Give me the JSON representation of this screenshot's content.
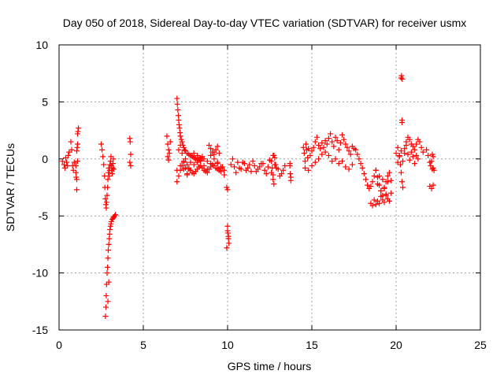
{
  "chart_data": {
    "type": "scatter",
    "title": "Day 050 of 2018, Sidereal Day-to-day VTEC variation (SDTVAR) for receiver usmx",
    "xlabel": "GPS time / hours",
    "ylabel": "SDTVAR / TECUs",
    "xlim": [
      0,
      25
    ],
    "ylim": [
      -15,
      10
    ],
    "xticks": [
      0,
      5,
      10,
      15,
      20,
      25
    ],
    "yticks": [
      -15,
      -10,
      -5,
      0,
      5,
      10
    ],
    "xtick_labels": [
      "0",
      "5",
      "10",
      "15",
      "20",
      "25"
    ],
    "ytick_labels": [
      "-15",
      "-10",
      "-5",
      "0",
      "5",
      "10"
    ],
    "grid": true,
    "marker": "+",
    "series": [
      {
        "name": "SDTVAR",
        "color": "#ff0000",
        "x": [
          0.2,
          0.3,
          0.35,
          0.4,
          0.45,
          0.5,
          0.55,
          0.6,
          0.7,
          0.75,
          0.8,
          0.85,
          0.9,
          1.0,
          1.02,
          1.05,
          1.08,
          1.1,
          1.12,
          1.15,
          1.05,
          1.1,
          1.0,
          1.05,
          1.1,
          2.5,
          2.55,
          2.6,
          2.65,
          2.7,
          2.72,
          2.75,
          2.78,
          2.8,
          2.82,
          2.85,
          2.88,
          2.9,
          2.92,
          2.95,
          2.98,
          3.0,
          3.02,
          3.05,
          3.08,
          3.1,
          3.12,
          3.15,
          3.18,
          3.2,
          3.22,
          3.25,
          2.75,
          2.78,
          2.8,
          2.82,
          2.85,
          2.88,
          2.9,
          2.92,
          2.95,
          2.98,
          3.0,
          3.02,
          3.05,
          3.08,
          3.1,
          3.15,
          3.2,
          3.25,
          3.3,
          3.35,
          2.9,
          2.95,
          4.2,
          4.22,
          4.25,
          4.2,
          4.25,
          6.4,
          6.45,
          6.5,
          6.45,
          6.5,
          6.55,
          6.6,
          7.0,
          7.02,
          7.05,
          7.08,
          7.1,
          7.12,
          7.15,
          7.18,
          7.2,
          7.25,
          7.3,
          7.35,
          7.4,
          7.45,
          7.5,
          7.6,
          7.7,
          7.8,
          7.9,
          8.0,
          8.1,
          8.2,
          8.3,
          8.4,
          8.5,
          7.0,
          7.1,
          7.2,
          7.3,
          7.4,
          7.5,
          7.6,
          7.7,
          7.8,
          7.9,
          8.0,
          8.1,
          8.2,
          8.3,
          8.4,
          8.5,
          8.6,
          8.7,
          8.8,
          8.9,
          9.0,
          9.1,
          9.2,
          9.3,
          9.4,
          9.5,
          9.6,
          9.7,
          7.1,
          7.2,
          7.3,
          7.4,
          7.5,
          7.6,
          7.7,
          7.8,
          7.9,
          8.0,
          8.2,
          8.4,
          8.6,
          8.8,
          9.0,
          9.2,
          9.4,
          9.6,
          9.8,
          7.0,
          7.2,
          7.4,
          7.6,
          7.8,
          8.0,
          8.2,
          8.4,
          8.6,
          8.8,
          9.0,
          9.2,
          9.4,
          9.6,
          9.8,
          8.9,
          9.0,
          9.1,
          9.2,
          9.3,
          9.4,
          9.5,
          9.95,
          10.0,
          10.02,
          10.05,
          10.08,
          10.0,
          10.05,
          9.95,
          10.0,
          10.2,
          10.4,
          10.6,
          10.8,
          11.0,
          11.2,
          11.4,
          11.6,
          11.8,
          12.0,
          12.2,
          12.4,
          12.6,
          12.8,
          13.0,
          13.2,
          13.4,
          10.3,
          10.5,
          10.7,
          10.9,
          11.1,
          11.3,
          11.5,
          11.7,
          11.9,
          12.1,
          12.3,
          12.5,
          12.7,
          12.9,
          13.1,
          13.3,
          12.6,
          12.65,
          12.7,
          12.75,
          12.8,
          12.85,
          12.7,
          12.75,
          13.7,
          13.72,
          13.75,
          13.7,
          13.75,
          14.5,
          14.55,
          14.6,
          14.65,
          14.7,
          14.75,
          14.8,
          14.9,
          15.0,
          15.1,
          15.2,
          15.3,
          15.4,
          15.5,
          15.6,
          15.7,
          15.8,
          15.9,
          16.0,
          16.1,
          16.2,
          16.3,
          16.4,
          16.5,
          16.6,
          16.7,
          16.8,
          16.9,
          17.0,
          17.1,
          17.2,
          17.3,
          17.4,
          17.5,
          14.6,
          14.8,
          15.0,
          15.2,
          15.4,
          15.6,
          15.8,
          16.0,
          16.2,
          16.4,
          16.6,
          16.8,
          17.0,
          17.2,
          17.4,
          17.6,
          17.7,
          17.8,
          17.9,
          18.0,
          18.1,
          18.2,
          18.3,
          18.4,
          18.5,
          18.6,
          18.7,
          18.8,
          18.9,
          19.0,
          19.1,
          19.2,
          19.3,
          19.4,
          19.5,
          19.6,
          19.7,
          18.5,
          18.6,
          18.7,
          18.8,
          18.9,
          19.0,
          19.1,
          19.2,
          19.3,
          19.4,
          19.5,
          19.6,
          19.7,
          18.8,
          18.9,
          19.0,
          19.1,
          19.2,
          19.3,
          19.4,
          19.5,
          20.0,
          20.1,
          20.2,
          20.25,
          20.3,
          20.35,
          20.4,
          20.5,
          20.6,
          20.7,
          20.8,
          20.9,
          21.0,
          21.1,
          21.2,
          21.3,
          21.4,
          21.5,
          21.6,
          20.1,
          20.2,
          20.3,
          20.4,
          20.5,
          20.6,
          20.7,
          20.8,
          20.9,
          21.0,
          21.1,
          21.2,
          21.3,
          20.3,
          20.32,
          20.35,
          20.35,
          20.37,
          21.8,
          21.9,
          22.0,
          22.05,
          22.1,
          22.15,
          22.2,
          22.25,
          22.0,
          22.1,
          22.2,
          22.15,
          22.2
        ],
        "y": [
          -0.2,
          -0.5,
          -0.8,
          0.1,
          -0.3,
          -0.6,
          0.3,
          0.6,
          1.5,
          0.8,
          -0.6,
          -1.0,
          -0.3,
          -1.2,
          -1.6,
          -2.7,
          1.0,
          1.3,
          2.4,
          2.7,
          -1.8,
          2.2,
          -0.6,
          0.7,
          -0.2,
          1.3,
          0.8,
          0.2,
          -0.5,
          -1.5,
          -2.5,
          -3.5,
          -4.0,
          -4.3,
          -3.8,
          -3.2,
          -2.5,
          -1.8,
          -1.2,
          -0.8,
          -1.5,
          -1.0,
          -0.5,
          -0.2,
          0.2,
          -0.6,
          -1.0,
          -1.3,
          -0.8,
          -0.4,
          0.0,
          -0.9,
          -13.8,
          -13.0,
          -12.0,
          -11.0,
          -10.0,
          -9.5,
          -8.7,
          -8.0,
          -7.5,
          -7.0,
          -6.6,
          -6.2,
          -5.9,
          -5.7,
          -5.5,
          -5.3,
          -5.2,
          -5.1,
          -5.0,
          -4.9,
          -12.5,
          -10.8,
          1.8,
          1.5,
          0.4,
          -0.3,
          -0.6,
          2.0,
          1.3,
          0.8,
          0.2,
          -0.1,
          0.5,
          1.5,
          5.3,
          4.8,
          4.3,
          3.8,
          3.4,
          3.0,
          2.7,
          2.3,
          2.0,
          1.7,
          1.5,
          1.2,
          1.0,
          0.8,
          0.7,
          0.5,
          0.4,
          0.3,
          0.2,
          0.1,
          0.0,
          -0.1,
          0.0,
          0.1,
          0.2,
          -2.0,
          -1.5,
          -1.0,
          -0.6,
          -0.3,
          0.0,
          -0.5,
          -0.8,
          -1.0,
          -1.2,
          -1.3,
          -1.1,
          -0.9,
          -0.7,
          -0.6,
          -0.8,
          -1.0,
          -1.1,
          -1.2,
          -0.9,
          -0.7,
          -0.5,
          -0.6,
          -0.8,
          -0.9,
          -1.0,
          -0.8,
          -0.7,
          0.8,
          1.2,
          0.5,
          -0.2,
          -0.8,
          -1.4,
          -0.9,
          -0.3,
          0.2,
          0.5,
          0.3,
          -0.2,
          -0.6,
          -0.9,
          -0.4,
          0.0,
          -0.3,
          -0.7,
          -1.0,
          -1.0,
          -0.6,
          -0.9,
          -1.3,
          -1.0,
          -0.5,
          -0.3,
          -0.1,
          0.0,
          -0.2,
          0.3,
          0.6,
          -0.4,
          -1.1,
          -1.4,
          1.2,
          0.9,
          0.6,
          0.4,
          0.8,
          1.1,
          0.5,
          -2.5,
          -2.7,
          -6.5,
          -7.0,
          -7.4,
          -5.9,
          -6.8,
          -7.8,
          -6.3,
          -0.5,
          -0.7,
          -0.3,
          -0.9,
          -0.4,
          -0.8,
          -1.1,
          -0.6,
          -0.9,
          -0.4,
          -1.0,
          -0.7,
          -1.2,
          -0.5,
          -0.9,
          -1.3,
          -0.6,
          0.0,
          -1.2,
          -0.8,
          -0.3,
          -1.0,
          -0.5,
          -0.2,
          -1.1,
          -0.7,
          -0.4,
          -1.3,
          -0.1,
          0.3,
          -0.8,
          -1.5,
          -1.0,
          -0.2,
          -0.8,
          -1.4,
          -2.2,
          0.1,
          -0.5,
          -1.8,
          0.3,
          -0.6,
          -1.3,
          -1.9,
          -0.4,
          -1.6,
          1.0,
          0.5,
          -0.2,
          1.3,
          0.8,
          0.1,
          0.9,
          0.3,
          0.7,
          1.0,
          1.5,
          1.9,
          1.2,
          0.9,
          1.4,
          1.0,
          1.6,
          1.3,
          1.8,
          2.2,
          1.5,
          1.1,
          1.9,
          1.6,
          0.8,
          1.4,
          2.1,
          1.7,
          1.3,
          1.0,
          0.7,
          0.4,
          1.1,
          0.9,
          -0.8,
          -1.0,
          -0.6,
          -0.3,
          0.0,
          0.4,
          0.6,
          0.3,
          -0.2,
          0.0,
          -0.4,
          -0.2,
          -0.7,
          -0.9,
          -0.5,
          0.8,
          0.4,
          0.0,
          -0.4,
          -0.8,
          -1.3,
          -1.8,
          -2.3,
          -2.6,
          -2.4,
          -2.0,
          -1.5,
          -1.0,
          -1.6,
          -2.3,
          -2.8,
          -3.2,
          -2.6,
          -2.0,
          -1.5,
          -1.2,
          -1.9,
          -3.9,
          -4.1,
          -3.6,
          -4.0,
          -3.7,
          -3.9,
          -3.3,
          -3.6,
          -3.8,
          -3.2,
          -3.5,
          -3.7,
          -3.0,
          -1.0,
          -2.2,
          -1.5,
          -2.8,
          -1.8,
          -2.5,
          -3.1,
          -2.0,
          0.5,
          1.0,
          0.2,
          -0.5,
          -1.2,
          -2.0,
          -2.5,
          0.9,
          1.5,
          1.9,
          1.7,
          1.3,
          1.1,
          0.8,
          1.3,
          1.7,
          1.5,
          1.0,
          0.6,
          -0.3,
          0.3,
          0.7,
          -0.2,
          0.5,
          1.2,
          0.4,
          -0.1,
          0.6,
          0.2,
          -0.4,
          0.3,
          0.0,
          7.1,
          7.3,
          3.2,
          3.4,
          7.0,
          0.8,
          0.3,
          -0.3,
          -0.6,
          -0.2,
          0.4,
          -0.8,
          -1.0,
          -2.4,
          -2.6,
          -2.3,
          -0.9,
          0.2
        ]
      }
    ]
  }
}
